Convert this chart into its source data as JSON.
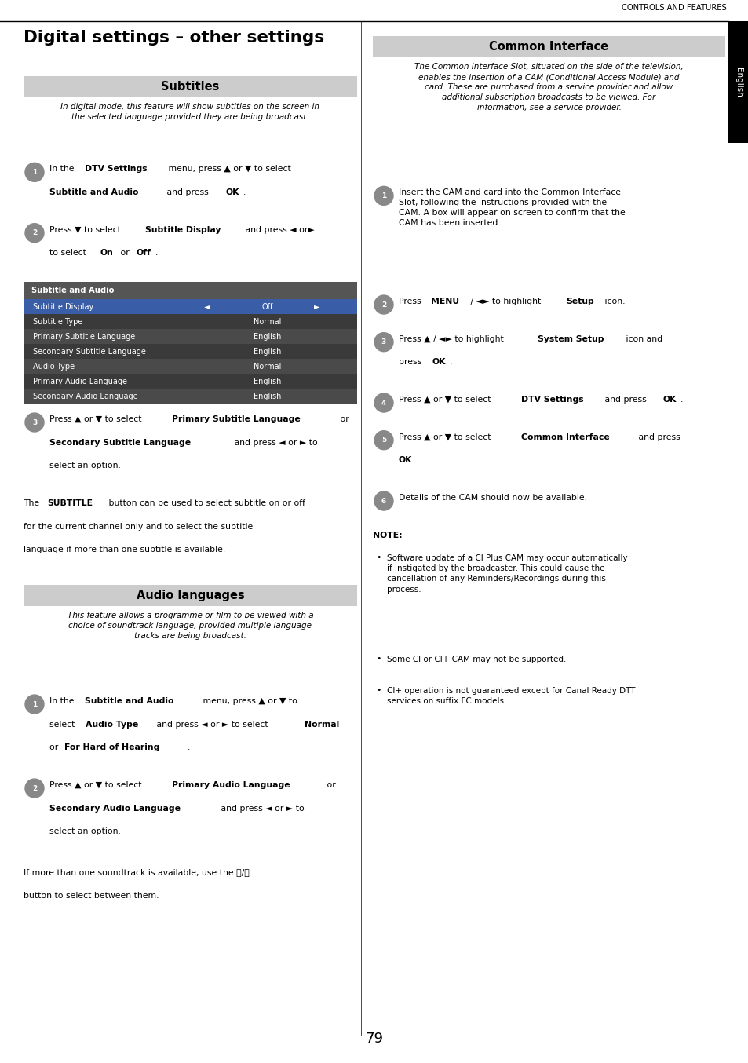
{
  "page_width": 9.54,
  "page_height": 13.54,
  "bg_color": "#ffffff",
  "header_text": "CONTROLS AND FEATURES",
  "sidebar_label": "English",
  "main_title": "Digital settings – other settings",
  "left_section_title": "Subtitles",
  "left_intro": "In digital mode, this feature will show subtitles on the screen in\nthe selected language provided they are being broadcast.",
  "table_header": "Subtitle and Audio",
  "table_rows": [
    {
      "label": "Subtitle Display",
      "value": "Off",
      "selected": true
    },
    {
      "label": "Subtitle Type",
      "value": "Normal",
      "selected": false
    },
    {
      "label": "Primary Subtitle Language",
      "value": "English",
      "selected": false
    },
    {
      "label": "Secondary Subtitle Language",
      "value": "English",
      "selected": false
    },
    {
      "label": "Audio Type",
      "value": "Normal",
      "selected": false
    },
    {
      "label": "Primary Audio Language",
      "value": "English",
      "selected": false
    },
    {
      "label": "Secondary Audio Language",
      "value": "English",
      "selected": false
    }
  ],
  "selected_row_bg": "#3a5da8",
  "left_section2_title": "Audio languages",
  "audio_intro": "This feature allows a programme or film to be viewed with a\nchoice of soundtrack language, provided multiple language\ntracks are being broadcast.",
  "right_section_title": "Common Interface",
  "right_intro": "The Common Interface Slot, situated on the side of the television,\nenables the insertion of a CAM (Conditional Access Module) and\ncard. These are purchased from a service provider and allow\nadditional subscription broadcasts to be viewed. For\ninformation, see a service provider.",
  "note_title": "NOTE:",
  "note_bullets": [
    "Software update of a CI Plus CAM may occur automatically\nif instigated by the broadcaster. This could cause the\ncancellation of any Reminders/Recordings during this\nprocess.",
    "Some CI or CI+ CAM may not be supported.",
    "CI+ operation is not guaranteed except for Canal Ready DTT\nservices on suffix FC models."
  ],
  "page_number": "79",
  "section_header_bg": "#cccccc",
  "table_header_bg": "#555555",
  "odd_row_bg": "#4a4a4a",
  "even_row_bg": "#3a3a3a"
}
